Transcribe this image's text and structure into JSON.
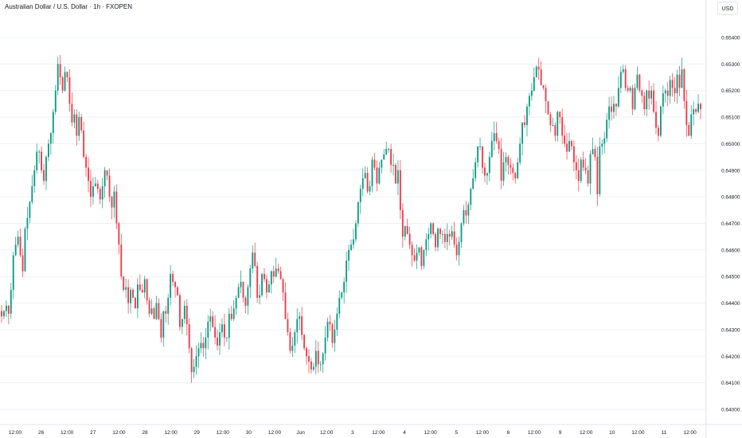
{
  "header": {
    "title": "Australian Dollar / U.S. Dollar · 1h · FXOPEN",
    "currency": "USD"
  },
  "colors": {
    "up": "#089981",
    "down": "#f23645",
    "grid": "#eef0f4",
    "text": "#131722",
    "background": "#ffffff"
  },
  "chart_data": {
    "type": "candlestick",
    "title": "Australian Dollar / U.S. Dollar · 1h · FXOPEN",
    "ylabel": "USD",
    "ylim": [
      0.64,
      0.6545
    ],
    "grid": "horizontal",
    "y_ticks": [
      "0.65400",
      "0.65300",
      "0.65200",
      "0.65100",
      "0.65000",
      "0.64900",
      "0.64800",
      "0.64700",
      "0.64600",
      "0.64500",
      "0.64400",
      "0.64300",
      "0.64200",
      "0.64100",
      "0.64000"
    ],
    "x_ticks": [
      "12:00",
      "26",
      "12:00",
      "27",
      "12:00",
      "28",
      "12:00",
      "29",
      "12:00",
      "30",
      "12:00",
      "Jun",
      "12:00",
      "3",
      "12:00",
      "4",
      "12:00",
      "5",
      "12:00",
      "6",
      "12:00",
      "9",
      "12:00",
      "10",
      "12:00",
      "11",
      "12:00"
    ],
    "closes": [
      0.6435,
      0.6437,
      0.6439,
      0.6436,
      0.6445,
      0.6458,
      0.6462,
      0.6465,
      0.6458,
      0.6452,
      0.6468,
      0.6472,
      0.6478,
      0.6484,
      0.649,
      0.6497,
      0.6497,
      0.649,
      0.6486,
      0.6495,
      0.65,
      0.6504,
      0.6512,
      0.652,
      0.653,
      0.6525,
      0.652,
      0.6527,
      0.6525,
      0.6515,
      0.6508,
      0.6511,
      0.6503,
      0.651,
      0.6505,
      0.6495,
      0.6491,
      0.6486,
      0.648,
      0.6484,
      0.6485,
      0.6483,
      0.6479,
      0.6484,
      0.649,
      0.6488,
      0.648,
      0.6476,
      0.6482,
      0.647,
      0.6462,
      0.645,
      0.6445,
      0.6446,
      0.644,
      0.6445,
      0.6442,
      0.6438,
      0.6447,
      0.6445,
      0.6444,
      0.6449,
      0.6441,
      0.6436,
      0.6438,
      0.6434,
      0.644,
      0.6434,
      0.6427,
      0.6437,
      0.6436,
      0.6442,
      0.6451,
      0.6448,
      0.6446,
      0.6443,
      0.6431,
      0.6434,
      0.6439,
      0.6432,
      0.6423,
      0.6414,
      0.6416,
      0.642,
      0.6423,
      0.6425,
      0.6423,
      0.6427,
      0.6433,
      0.6435,
      0.6431,
      0.6427,
      0.6424,
      0.6429,
      0.6432,
      0.6427,
      0.6427,
      0.6436,
      0.6434,
      0.6438,
      0.6442,
      0.6446,
      0.6448,
      0.6442,
      0.6439,
      0.6446,
      0.6453,
      0.6459,
      0.6454,
      0.6442,
      0.6443,
      0.6451,
      0.6449,
      0.6444,
      0.6447,
      0.6452,
      0.645,
      0.6453,
      0.6452,
      0.6449,
      0.6444,
      0.6434,
      0.6429,
      0.6422,
      0.6424,
      0.6429,
      0.6434,
      0.6435,
      0.6428,
      0.6423,
      0.642,
      0.6418,
      0.6415,
      0.6416,
      0.6422,
      0.6417,
      0.6417,
      0.6421,
      0.6427,
      0.6433,
      0.6432,
      0.6425,
      0.643,
      0.6436,
      0.6442,
      0.6444,
      0.6448,
      0.6456,
      0.646,
      0.6462,
      0.6464,
      0.647,
      0.6478,
      0.6483,
      0.6487,
      0.6489,
      0.6482,
      0.6484,
      0.6494,
      0.6491,
      0.6485,
      0.6491,
      0.6494,
      0.6496,
      0.6498,
      0.6498,
      0.6492,
      0.6492,
      0.6485,
      0.649,
      0.6475,
      0.6465,
      0.6469,
      0.6466,
      0.6462,
      0.6458,
      0.6456,
      0.6459,
      0.6461,
      0.6454,
      0.646,
      0.6464,
      0.6466,
      0.647,
      0.6466,
      0.6461,
      0.6468,
      0.6466,
      0.6466,
      0.6463,
      0.6466,
      0.6465,
      0.6467,
      0.6462,
      0.6458,
      0.6463,
      0.647,
      0.6475,
      0.6473,
      0.6477,
      0.6483,
      0.6487,
      0.6493,
      0.6499,
      0.6499,
      0.6491,
      0.6488,
      0.6489,
      0.6495,
      0.6501,
      0.6504,
      0.6501,
      0.6498,
      0.6486,
      0.6493,
      0.6495,
      0.6492,
      0.6491,
      0.6489,
      0.6487,
      0.6493,
      0.65,
      0.6508,
      0.6507,
      0.6514,
      0.6518,
      0.652,
      0.6525,
      0.6529,
      0.6528,
      0.6522,
      0.6521,
      0.6516,
      0.6511,
      0.6507,
      0.6507,
      0.6503,
      0.6512,
      0.651,
      0.6503,
      0.65,
      0.6497,
      0.6501,
      0.6499,
      0.6493,
      0.649,
      0.6486,
      0.6494,
      0.6491,
      0.649,
      0.6485,
      0.6496,
      0.6498,
      0.6495,
      0.6481,
      0.6499,
      0.65,
      0.6502,
      0.6509,
      0.6514,
      0.6512,
      0.6515,
      0.6514,
      0.6521,
      0.6527,
      0.6528,
      0.6521,
      0.652,
      0.6521,
      0.6513,
      0.6521,
      0.6526,
      0.652,
      0.6518,
      0.6513,
      0.652,
      0.6517,
      0.652,
      0.6512,
      0.6506,
      0.6503,
      0.6514,
      0.6519,
      0.652,
      0.6518,
      0.6524,
      0.6521,
      0.6519,
      0.6526,
      0.6521,
      0.6528,
      0.6516,
      0.6507,
      0.6503,
      0.6511,
      0.6513,
      0.6512,
      0.6515,
      0.6513
    ]
  }
}
